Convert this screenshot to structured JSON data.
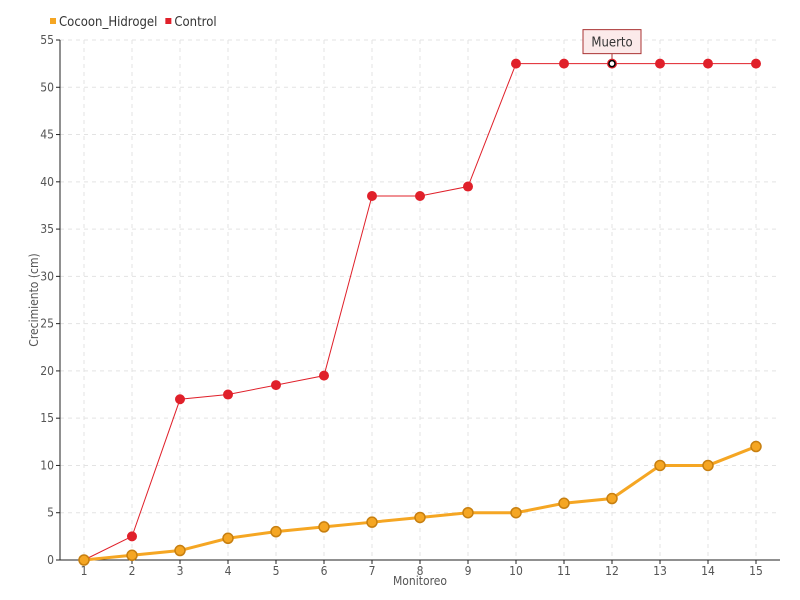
{
  "chart_data": {
    "type": "line",
    "title": "",
    "xlabel": "Monitoreo",
    "ylabel": "Crecimiento (cm)",
    "x": [
      1,
      2,
      3,
      4,
      5,
      6,
      7,
      8,
      9,
      10,
      11,
      12,
      13,
      14,
      15
    ],
    "ylim": [
      0,
      55
    ],
    "yticks": [
      0,
      5,
      10,
      15,
      20,
      25,
      30,
      35,
      40,
      45,
      50,
      55
    ],
    "grid": true,
    "legend_position": "top-left",
    "series": [
      {
        "name": "Cocoon_Hidrogel",
        "color": "#f5a623",
        "values": [
          0,
          0.5,
          1,
          2.3,
          3,
          3.5,
          4,
          4.5,
          5,
          5,
          6,
          6.5,
          10,
          10,
          12
        ]
      },
      {
        "name": "Control",
        "color": "#e0202a",
        "values": [
          0,
          2.5,
          17,
          17.5,
          18.5,
          19.5,
          38.5,
          38.5,
          39.5,
          52.5,
          52.5,
          52.5,
          52.5,
          52.5,
          52.5
        ]
      }
    ],
    "annotations": [
      {
        "series": "Control",
        "x": 12,
        "text": "Muerto"
      }
    ]
  }
}
